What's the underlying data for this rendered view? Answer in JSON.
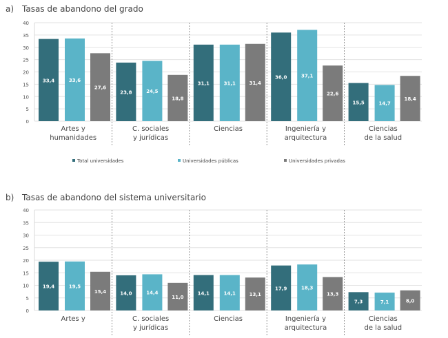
{
  "chart_data": [
    {
      "type": "bar",
      "panel": "a)",
      "title": "Tasas de abandono del grado",
      "categories": [
        [
          "Artes y",
          "humanidades"
        ],
        [
          "C. sociales",
          "y jurídicas"
        ],
        [
          "Ciencias"
        ],
        [
          "Ingeniería y",
          "arquitectura"
        ],
        [
          "Ciencias",
          "de la salud"
        ]
      ],
      "series": [
        {
          "name": "Total universidades",
          "color": "#336e7b",
          "values": [
            33.4,
            23.8,
            31.1,
            36.0,
            15.5
          ],
          "labels": [
            "33,4",
            "23,8",
            "31,1",
            "36,0",
            "15,5"
          ]
        },
        {
          "name": "Universidades públicas",
          "color": "#5ab4c8",
          "values": [
            33.6,
            24.5,
            31.1,
            37.1,
            14.7
          ],
          "labels": [
            "33,6",
            "24,5",
            "31,1",
            "37,1",
            "14,7"
          ]
        },
        {
          "name": "Universidades privadas",
          "color": "#7b7b7b",
          "values": [
            27.6,
            18.8,
            31.4,
            22.6,
            18.4
          ],
          "labels": [
            "27,6",
            "18,8",
            "31,4",
            "22,6",
            "18,4"
          ]
        }
      ],
      "ylim": [
        0,
        40
      ],
      "yticks": [
        0,
        5,
        10,
        15,
        20,
        25,
        30,
        35,
        40
      ],
      "grid": true,
      "legend": "bottom"
    },
    {
      "type": "bar",
      "panel": "b)",
      "title": "Tasas de abandono del sistema universitario",
      "categories": [
        [
          "Artes y"
        ],
        [
          "C. sociales",
          "y jurídicas"
        ],
        [
          "Ciencias"
        ],
        [
          "Ingeniería y",
          "arquitectura"
        ],
        [
          "Ciencias",
          "de la salud"
        ]
      ],
      "series": [
        {
          "color": "#336e7b",
          "values": [
            19.4,
            14.0,
            14.1,
            17.9,
            7.3
          ],
          "labels": [
            "19,4",
            "14,0",
            "14,1",
            "17,9",
            "7,3"
          ]
        },
        {
          "color": "#5ab4c8",
          "values": [
            19.5,
            14.4,
            14.1,
            18.3,
            7.1
          ],
          "labels": [
            "19,5",
            "14,4",
            "14,1",
            "18,3",
            "7,1"
          ]
        },
        {
          "color": "#7b7b7b",
          "values": [
            15.4,
            11.0,
            13.1,
            13.3,
            8.0
          ],
          "labels": [
            "15,4",
            "11,0",
            "13,1",
            "13,3",
            "8,0"
          ]
        }
      ],
      "ylim": [
        0,
        40
      ],
      "yticks": [
        0,
        5,
        10,
        15,
        20,
        25,
        30,
        35,
        40
      ],
      "grid": true
    }
  ]
}
